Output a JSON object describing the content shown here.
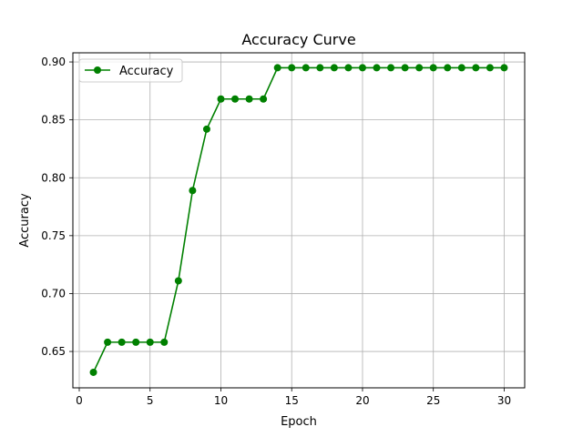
{
  "chart_data": {
    "type": "line",
    "title": "Accuracy Curve",
    "xlabel": "Epoch",
    "ylabel": "Accuracy",
    "xlim": [
      -0.45,
      31.45
    ],
    "ylim": [
      0.6186,
      0.9079
    ],
    "xticks": [
      0,
      5,
      10,
      15,
      20,
      25,
      30
    ],
    "yticks": [
      0.65,
      0.7,
      0.75,
      0.8,
      0.85,
      0.9
    ],
    "xtick_labels": [
      "0",
      "5",
      "10",
      "15",
      "20",
      "25",
      "30"
    ],
    "ytick_labels": [
      "0.65",
      "0.70",
      "0.75",
      "0.80",
      "0.85",
      "0.90"
    ],
    "grid": true,
    "legend_position": "upper-left",
    "series": [
      {
        "name": "Accuracy",
        "color": "#008000",
        "marker": "circle",
        "x": [
          1,
          2,
          3,
          4,
          5,
          6,
          7,
          8,
          9,
          10,
          11,
          12,
          13,
          14,
          15,
          16,
          17,
          18,
          19,
          20,
          21,
          22,
          23,
          24,
          25,
          26,
          27,
          28,
          29,
          30
        ],
        "y": [
          0.632,
          0.658,
          0.658,
          0.658,
          0.658,
          0.658,
          0.711,
          0.789,
          0.842,
          0.868,
          0.868,
          0.868,
          0.868,
          0.895,
          0.895,
          0.895,
          0.895,
          0.895,
          0.895,
          0.895,
          0.895,
          0.895,
          0.895,
          0.895,
          0.895,
          0.895,
          0.895,
          0.895,
          0.895,
          0.895
        ]
      }
    ]
  }
}
